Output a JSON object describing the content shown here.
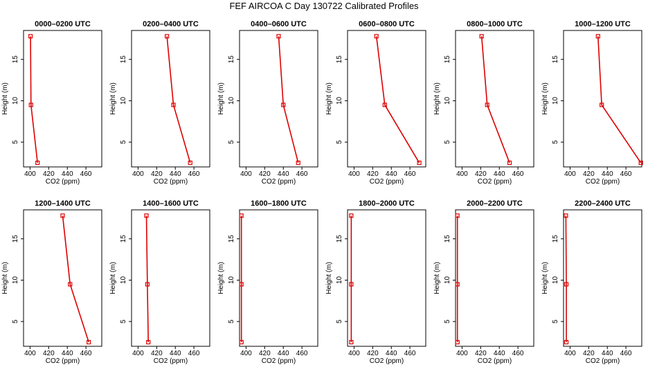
{
  "title": "FEF AIRCOA C  Day 130722  Calibrated Profiles",
  "chart_data": {
    "type": "line",
    "xlabel": "CO2 (ppm)",
    "ylabel": "Height (m)",
    "xlim": [
      393,
      477
    ],
    "ylim": [
      2,
      18.5
    ],
    "xticks": [
      400,
      420,
      440,
      460
    ],
    "yticks": [
      5,
      10,
      15
    ],
    "heights": [
      2.5,
      9.5,
      17.8
    ],
    "color": "#dd0000",
    "panels": [
      {
        "title": "0000–0200 UTC",
        "co2": [
          408,
          401,
          400.5
        ]
      },
      {
        "title": "0200–0400 UTC",
        "co2": [
          456,
          438,
          431
        ]
      },
      {
        "title": "0400–0600 UTC",
        "co2": [
          456,
          440,
          435
        ]
      },
      {
        "title": "0600–0800 UTC",
        "co2": [
          470,
          433,
          424
        ]
      },
      {
        "title": "0800–1000 UTC",
        "co2": [
          451,
          427,
          421
        ]
      },
      {
        "title": "1000–1200 UTC",
        "co2": [
          476,
          434,
          430
        ]
      },
      {
        "title": "1200–1400 UTC",
        "co2": [
          463,
          443,
          435
        ]
      },
      {
        "title": "1400–1600 UTC",
        "co2": [
          411,
          410,
          409
        ]
      },
      {
        "title": "1600–1800 UTC",
        "co2": [
          395,
          395,
          395
        ]
      },
      {
        "title": "1800–2000 UTC",
        "co2": [
          397,
          397,
          397
        ]
      },
      {
        "title": "2000–2200 UTC",
        "co2": [
          395,
          395,
          395
        ]
      },
      {
        "title": "2200–2400 UTC",
        "co2": [
          396,
          396,
          395.5
        ]
      }
    ]
  }
}
